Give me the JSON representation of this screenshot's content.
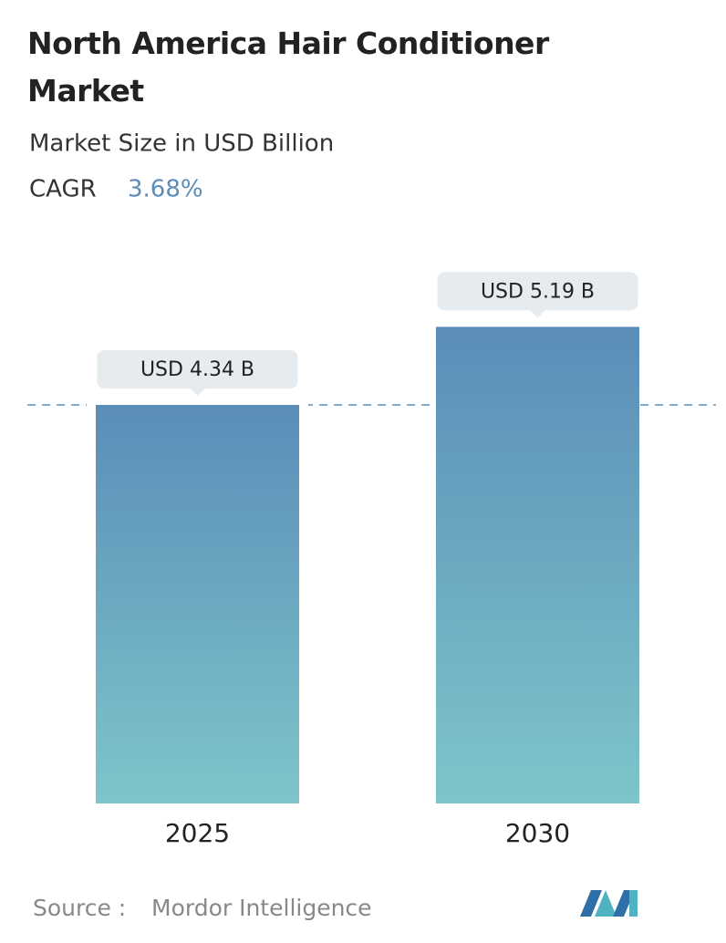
{
  "chart_data": {
    "type": "bar",
    "title": "North America Hair Conditioner Market",
    "subtitle": "Market Size in USD Billion",
    "cagr_label": "CAGR",
    "cagr": "3.68%",
    "categories": [
      "2025",
      "2030"
    ],
    "values": [
      4.34,
      5.19
    ],
    "value_labels": [
      "USD 4.34 B",
      "USD 5.19 B"
    ],
    "color_top": "#5b8db8",
    "color_bottom": "#7dc5ca",
    "source_label": "Source :",
    "source": "Mordor Intelligence"
  }
}
